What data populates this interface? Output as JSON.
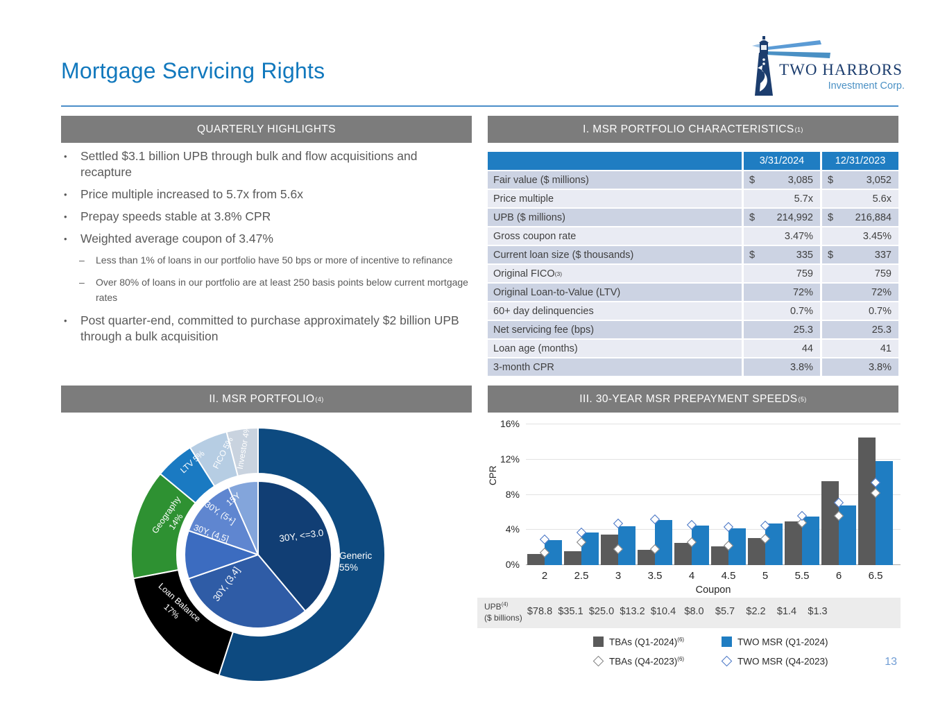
{
  "slide": {
    "title": "Mortgage Servicing Rights",
    "page_number": "13",
    "logo": {
      "line1": "TWO HARBORS",
      "line2": "Investment Corp."
    }
  },
  "highlights": {
    "header": "QUARTERLY HIGHLIGHTS",
    "bullets": [
      {
        "text": "Settled $3.1 billion UPB through bulk and flow acquisitions and recapture",
        "sub": []
      },
      {
        "text": "Price multiple increased to 5.7x from 5.6x",
        "sub": []
      },
      {
        "text": "Prepay speeds stable at 3.8% CPR",
        "sub": []
      },
      {
        "text": "Weighted average coupon of 3.47%",
        "sub": [
          "Less than 1% of loans in our portfolio have 50 bps or more of incentive to refinance",
          "Over 80% of loans in our portfolio are at least 250 basis points below current mortgage rates"
        ]
      },
      {
        "text": "Post quarter-end, committed to purchase approximately $2 billion UPB through a bulk acquisition",
        "sub": []
      }
    ]
  },
  "characteristics": {
    "header": "I.  MSR PORTFOLIO CHARACTERISTICS",
    "header_sup": "(1)",
    "columns": [
      "3/31/2024",
      "12/31/2023"
    ],
    "rows": [
      {
        "label": "Fair value ($ millions)",
        "sup": "",
        "p1": "$",
        "v1": "3,085",
        "p2": "$",
        "v2": "3,052"
      },
      {
        "label": "Price multiple",
        "sup": "",
        "p1": "",
        "v1": "5.7x",
        "p2": "",
        "v2": "5.6x"
      },
      {
        "label": "UPB ($ millions)",
        "sup": "",
        "p1": "$",
        "v1": "214,992",
        "p2": "$",
        "v2": "216,884"
      },
      {
        "label": "Gross coupon rate",
        "sup": "",
        "p1": "",
        "v1": "3.47%",
        "p2": "",
        "v2": "3.45%"
      },
      {
        "label": "Current loan size ($ thousands)",
        "sup": "",
        "p1": "$",
        "v1": "335",
        "p2": "$",
        "v2": "337"
      },
      {
        "label": "Original FICO",
        "sup": "(3)",
        "p1": "",
        "v1": "759",
        "p2": "",
        "v2": "759"
      },
      {
        "label": "Original Loan-to-Value (LTV)",
        "sup": "",
        "p1": "",
        "v1": "72%",
        "p2": "",
        "v2": "72%"
      },
      {
        "label": "60+ day delinquencies",
        "sup": "",
        "p1": "",
        "v1": "0.7%",
        "p2": "",
        "v2": "0.7%"
      },
      {
        "label": "Net servicing fee (bps)",
        "sup": "",
        "p1": "",
        "v1": "25.3",
        "p2": "",
        "v2": "25.3"
      },
      {
        "label": "Loan age (months)",
        "sup": "",
        "p1": "",
        "v1": "44",
        "p2": "",
        "v2": "41"
      },
      {
        "label": "3-month CPR",
        "sup": "",
        "p1": "",
        "v1": "3.8%",
        "p2": "",
        "v2": "3.8%"
      }
    ]
  },
  "portfolio_header": {
    "text": "II. MSR PORTFOLIO",
    "sup": "(4)"
  },
  "prepay_header": {
    "text": "III. 30-YEAR MSR PREPAYMENT SPEEDS",
    "sup": "(5)"
  },
  "chart_data": [
    {
      "type": "pie",
      "title": "II. MSR PORTFOLIO (4)",
      "outer_ring": [
        {
          "label": "Generic",
          "pct": 55,
          "color": "#0d4a80"
        },
        {
          "label": "Loan Balance",
          "pct": 17,
          "color": "#000000"
        },
        {
          "label": "Geography",
          "pct": 14,
          "color": "#2e9132"
        },
        {
          "label": "LTV",
          "pct": 5,
          "color": "#1a7ac2"
        },
        {
          "label": "FICO",
          "pct": 5,
          "color": "#b6cde3"
        },
        {
          "label": "Investor",
          "pct": 4,
          "color": "#c9d3df"
        }
      ],
      "inner_pie": [
        {
          "label": "30Y, <=3.0",
          "pct": 38.9,
          "color": "#113e74"
        },
        {
          "label": "30Y, (3,4]",
          "pct": 30.8,
          "color": "#2f5ca6"
        },
        {
          "label": "30Y, (4,5]",
          "pct": 10.6,
          "color": "#3c6cc0"
        },
        {
          "label": "30Y, (5+]",
          "pct": 13.1,
          "color": "#5f86d0"
        },
        {
          "label": "15Y",
          "pct": 6.6,
          "color": "#83a5db"
        }
      ],
      "outer_labels": [
        "Generic|55%",
        "Loan Balance|17%",
        "Geography|14%",
        "LTV 5%",
        "FICO 5%",
        "Investor 4%"
      ]
    },
    {
      "type": "bar",
      "title": "III. 30-YEAR MSR PREPAYMENT SPEEDS (5)",
      "categories": [
        "2",
        "2.5",
        "3",
        "3.5",
        "4",
        "4.5",
        "5",
        "5.5",
        "6",
        "6.5"
      ],
      "xlabel": "Coupon",
      "ylabel": "CPR",
      "ylim": [
        0,
        16
      ],
      "yticks": [
        "0%",
        "4%",
        "8%",
        "12%",
        "16%"
      ],
      "series": [
        {
          "name": "TBAs (Q1-2024)",
          "sup": "(6)",
          "style": "bar",
          "color": "#5a5a5a",
          "values": [
            1.3,
            1.6,
            3.5,
            1.7,
            2.5,
            2.1,
            3.1,
            5.0,
            9.5,
            14.5
          ]
        },
        {
          "name": "TWO MSR (Q1-2024)",
          "sup": "",
          "style": "bar",
          "color": "#1f7dc2",
          "values": [
            2.8,
            3.7,
            4.4,
            5.1,
            4.5,
            4.2,
            4.7,
            5.5,
            6.8,
            11.8
          ]
        },
        {
          "name": "TBAs (Q4-2023)",
          "sup": "(6)",
          "style": "diamond",
          "color": "#7f7f7f",
          "values": [
            1.4,
            2.6,
            1.8,
            1.8,
            2.6,
            2.2,
            3.0,
            4.8,
            5.6,
            8.2
          ]
        },
        {
          "name": "TWO MSR (Q4-2023)",
          "sup": "",
          "style": "diamond",
          "color": "#4472c4",
          "values": [
            2.9,
            3.7,
            4.7,
            5.2,
            4.6,
            4.3,
            4.5,
            5.6,
            7.1,
            9.4
          ]
        }
      ],
      "upb_row": {
        "label": "UPB",
        "label_sup": "(4)",
        "label_line2": "($ billions)",
        "values": [
          "$78.8",
          "$35.1",
          "$25.0",
          "$13.2",
          "$10.4",
          "$8.0",
          "$5.7",
          "$2.2",
          "$1.4",
          "$1.3"
        ]
      }
    }
  ]
}
